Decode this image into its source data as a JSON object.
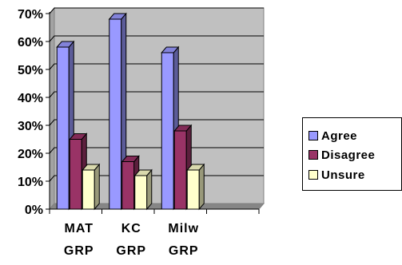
{
  "chart_data": {
    "type": "bar",
    "style": "3d-clustered-column",
    "categories": [
      "MAT GRP",
      "KC GRP",
      "Milw GRP"
    ],
    "category_lines": [
      [
        "MAT",
        "GRP"
      ],
      [
        "KC",
        "GRP"
      ],
      [
        "Milw",
        "GRP"
      ]
    ],
    "series": [
      {
        "name": "Agree",
        "color": "#9999ff",
        "values": [
          58,
          68,
          56
        ]
      },
      {
        "name": "Disagree",
        "color": "#993366",
        "values": [
          25,
          17,
          28
        ]
      },
      {
        "name": "Unsure",
        "color": "#ffffcc",
        "values": [
          14,
          12,
          14
        ]
      }
    ],
    "ylim": [
      0,
      70
    ],
    "yticks": [
      "0%",
      "10%",
      "20%",
      "30%",
      "40%",
      "50%",
      "60%",
      "70%"
    ],
    "grid": true,
    "legend_position": "right",
    "wall_color": "#c0c0c0"
  }
}
